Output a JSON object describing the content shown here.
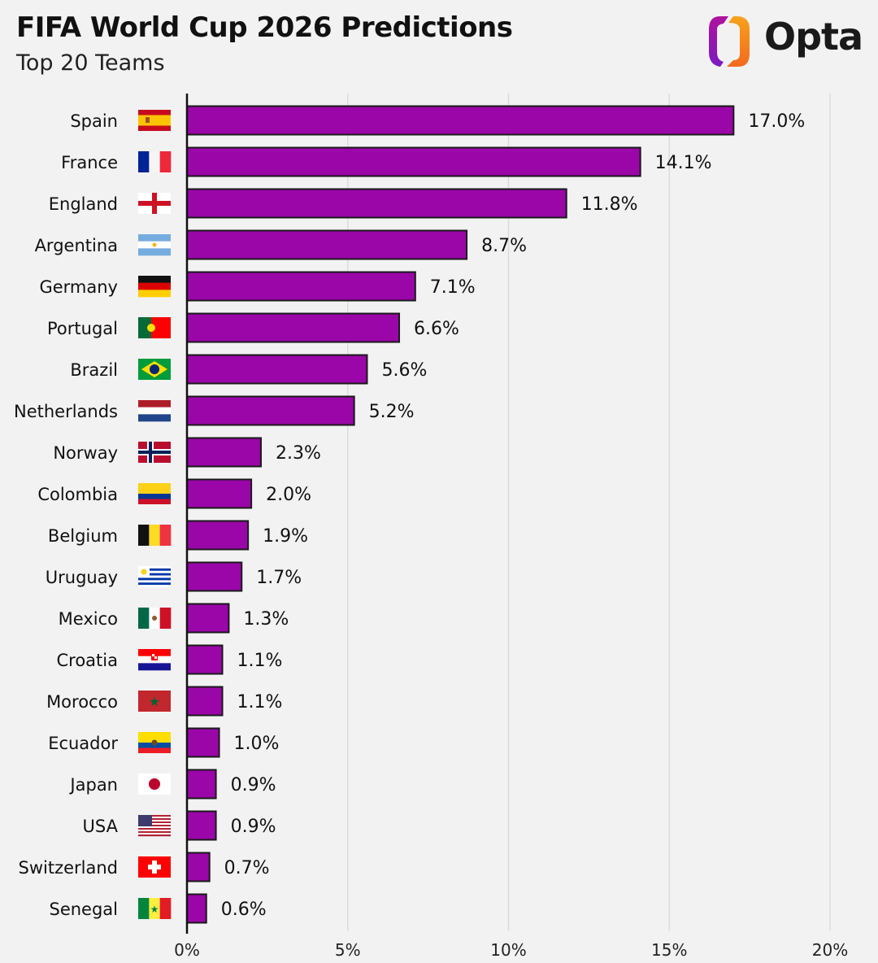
{
  "header": {
    "title": "FIFA World Cup 2026 Predictions",
    "subtitle": "Top 20 Teams"
  },
  "logo": {
    "text": "Opta",
    "colors": [
      "#9b1bb5",
      "#f7941d"
    ]
  },
  "colors": {
    "bar": "#9a06a8",
    "bar_outline": "#1a1a1a",
    "background": "#f2f2f2",
    "grid": "#dcdcdc"
  },
  "chart_data": {
    "type": "bar",
    "orientation": "horizontal",
    "title": "FIFA World Cup 2026 Predictions",
    "subtitle": "Top 20 Teams",
    "categories": [
      "Spain",
      "France",
      "England",
      "Argentina",
      "Germany",
      "Portugal",
      "Brazil",
      "Netherlands",
      "Norway",
      "Colombia",
      "Belgium",
      "Uruguay",
      "Mexico",
      "Croatia",
      "Morocco",
      "Ecuador",
      "Japan",
      "USA",
      "Switzerland",
      "Senegal"
    ],
    "values": [
      17.0,
      14.1,
      11.8,
      8.7,
      7.1,
      6.6,
      5.6,
      5.2,
      2.3,
      2.0,
      1.9,
      1.7,
      1.3,
      1.1,
      1.1,
      1.0,
      0.9,
      0.9,
      0.7,
      0.6
    ],
    "labels": [
      "17.0%",
      "14.1%",
      "11.8%",
      "8.7%",
      "7.1%",
      "6.6%",
      "5.6%",
      "5.2%",
      "2.3%",
      "2.0%",
      "1.9%",
      "1.7%",
      "1.3%",
      "1.1%",
      "1.1%",
      "1.0%",
      "0.9%",
      "0.9%",
      "0.7%",
      "0.6%"
    ],
    "icons": [
      "flag-spain",
      "flag-france",
      "flag-england",
      "flag-argentina",
      "flag-germany",
      "flag-portugal",
      "flag-brazil",
      "flag-netherlands",
      "flag-norway",
      "flag-colombia",
      "flag-belgium",
      "flag-uruguay",
      "flag-mexico",
      "flag-croatia",
      "flag-morocco",
      "flag-ecuador",
      "flag-japan",
      "flag-usa",
      "flag-switzerland",
      "flag-senegal"
    ],
    "xlim": [
      0,
      20
    ],
    "xticks": [
      "0%",
      "5%",
      "10%",
      "15%",
      "20%"
    ],
    "xtick_values": [
      0,
      5,
      10,
      15,
      20
    ],
    "grid": true,
    "xlabel": "",
    "ylabel": ""
  }
}
